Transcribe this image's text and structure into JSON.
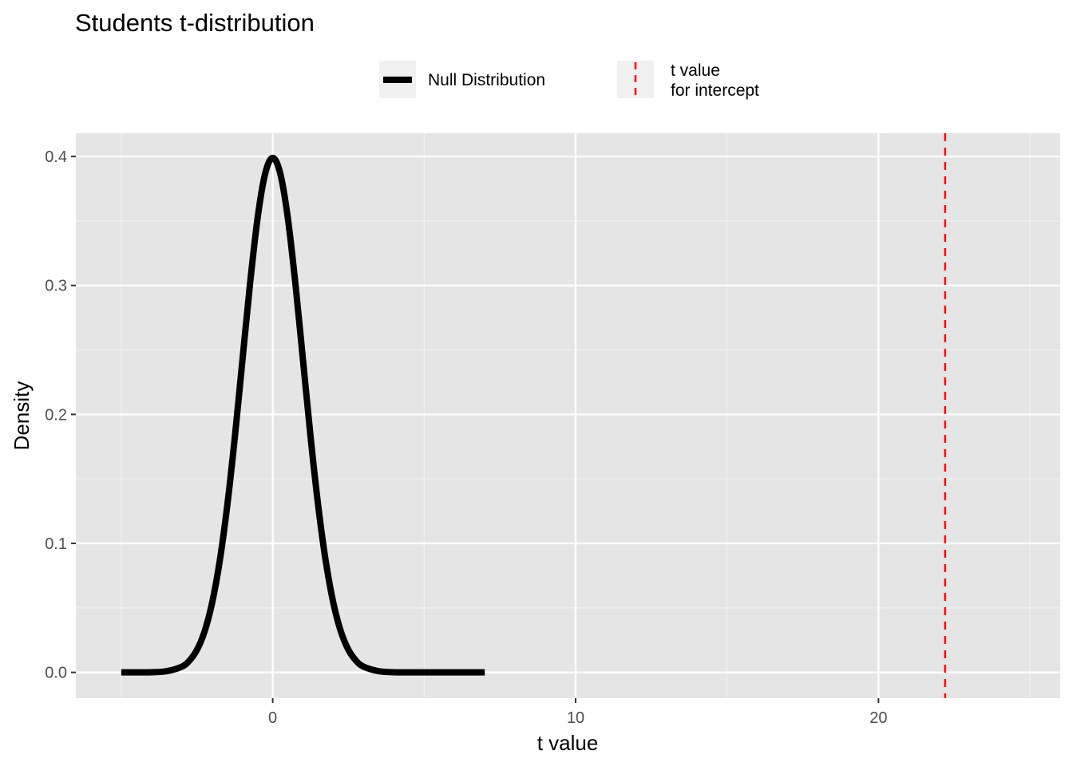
{
  "chart_data": {
    "type": "line",
    "title": "Students t-distribution",
    "xlabel": "t value",
    "ylabel": "Density",
    "xlim": [
      -6.5,
      26
    ],
    "ylim": [
      -0.02,
      0.418
    ],
    "x_ticks": [
      0,
      10,
      20
    ],
    "x_minor_ticks": [
      -5,
      5,
      15,
      25
    ],
    "y_ticks": [
      0.0,
      0.1,
      0.2,
      0.3,
      0.4
    ],
    "y_tick_labels": [
      "0.0",
      "0.1",
      "0.2",
      "0.3",
      "0.4"
    ],
    "y_minor_ticks": [
      0.05,
      0.15,
      0.25,
      0.35
    ],
    "grid": true,
    "legend_position": "top",
    "series": [
      {
        "name": "Null Distribution",
        "kind": "density_curve",
        "color": "#000000",
        "x": [
          -5,
          -4.5,
          -4,
          -3.5,
          -3,
          -2.75,
          -2.5,
          -2.25,
          -2,
          -1.75,
          -1.5,
          -1.25,
          -1,
          -0.75,
          -0.5,
          -0.25,
          0,
          0.25,
          0.5,
          0.75,
          1,
          1.25,
          1.5,
          1.75,
          2,
          2.25,
          2.5,
          2.75,
          3,
          3.5,
          4,
          4.5,
          5,
          6,
          7
        ],
        "y": [
          0.0,
          0.0,
          0.0001,
          0.0009,
          0.0044,
          0.0091,
          0.0175,
          0.0317,
          0.054,
          0.0863,
          0.1295,
          0.1826,
          0.242,
          0.3011,
          0.3521,
          0.3867,
          0.3989,
          0.3867,
          0.3521,
          0.3011,
          0.242,
          0.1826,
          0.1295,
          0.0863,
          0.054,
          0.0317,
          0.0175,
          0.0091,
          0.0044,
          0.0009,
          0.0001,
          0.0,
          0.0,
          0.0,
          0.0
        ]
      },
      {
        "name": "t value\nfor intercept",
        "kind": "vline",
        "color": "#ff0000",
        "linetype": "dashed",
        "x": 22.2
      }
    ]
  }
}
